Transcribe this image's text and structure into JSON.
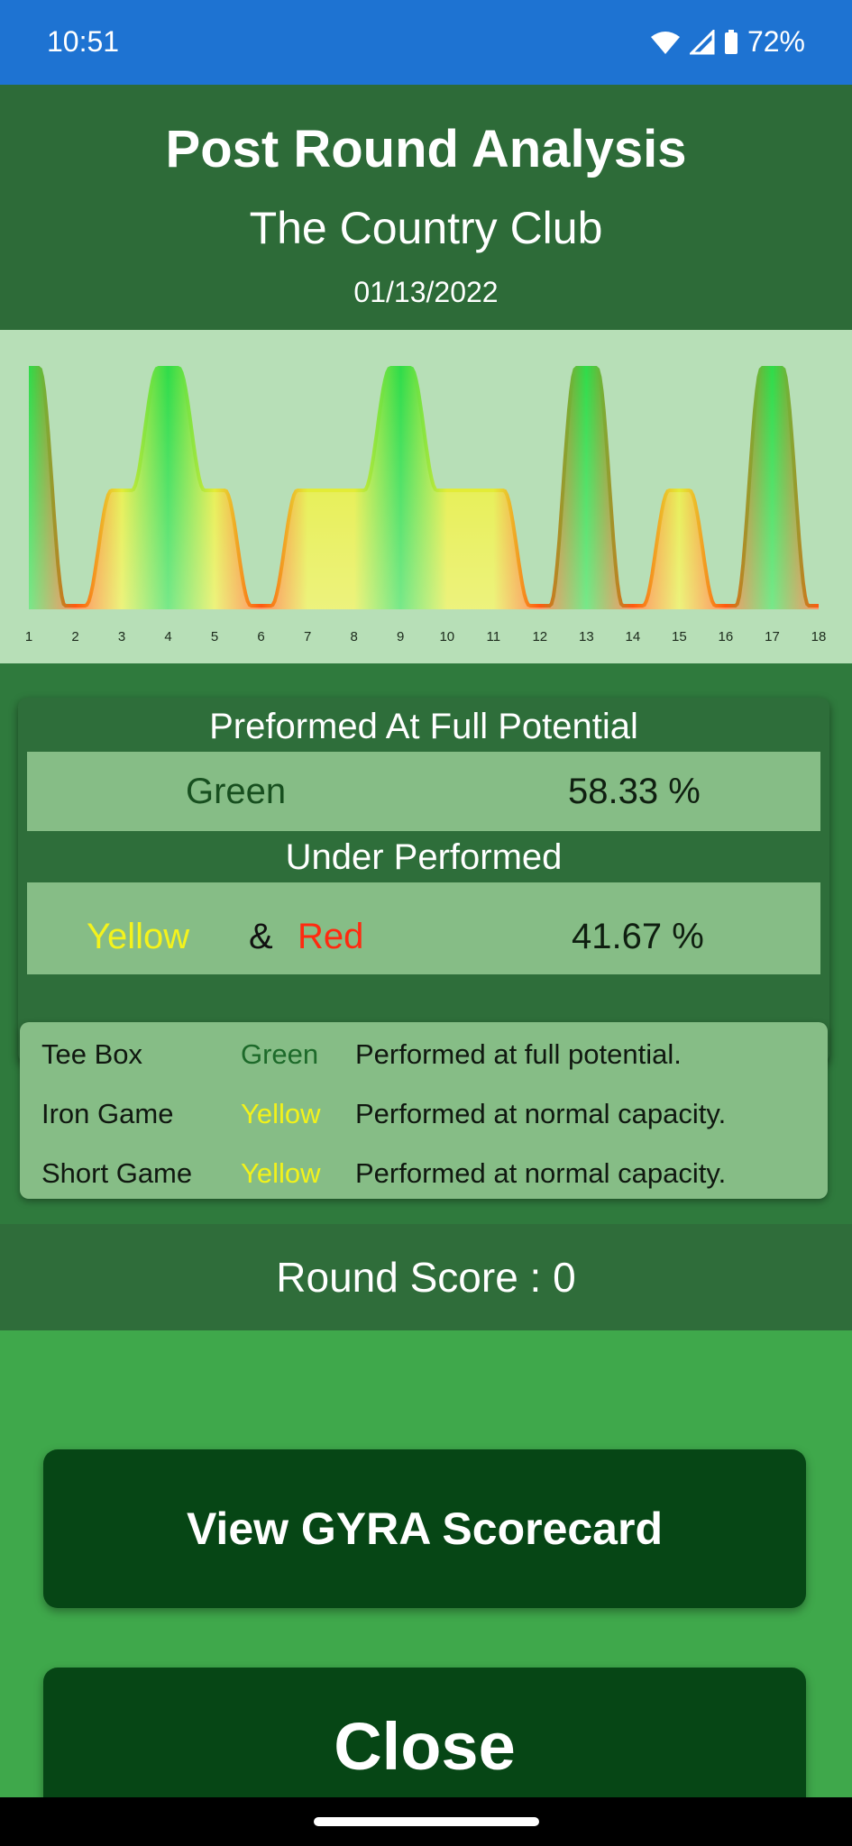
{
  "status": {
    "time": "10:51",
    "battery": "72%"
  },
  "header": {
    "title": "Post Round Analysis",
    "course": "The Country Club",
    "date": "01/13/2022"
  },
  "chart_data": {
    "type": "area",
    "x": [
      1,
      2,
      3,
      4,
      5,
      6,
      7,
      8,
      9,
      10,
      11,
      12,
      13,
      14,
      15,
      16,
      17,
      18
    ],
    "categories": [
      "1",
      "2",
      "3",
      "4",
      "5",
      "6",
      "7",
      "8",
      "9",
      "10",
      "11",
      "12",
      "13",
      "14",
      "15",
      "16",
      "17",
      "18"
    ],
    "levels": [
      "green",
      "red",
      "yellow",
      "green",
      "yellow",
      "red",
      "yellow",
      "yellow",
      "green",
      "yellow",
      "yellow",
      "red",
      "green",
      "red",
      "yellow",
      "red",
      "green",
      "red"
    ],
    "values": [
      3,
      1,
      2,
      3,
      2,
      1,
      2,
      2,
      3,
      2,
      2,
      1,
      3,
      1,
      2,
      1,
      3,
      1
    ],
    "colors": {
      "green": "#2fdc4a",
      "yellow": "#e3ec37",
      "red": "#ff5a10"
    },
    "title": "",
    "xlabel": "",
    "ylabel": ""
  },
  "performance": {
    "full_heading": "Preformed At Full Potential",
    "green_label": "Green",
    "green_pct": "58.33 %",
    "under_heading": "Under Performed",
    "yellow_label": "Yellow",
    "amp": "&",
    "red_label": "Red",
    "under_pct": "41.67 %"
  },
  "details": [
    {
      "area": "Tee Box",
      "rating": "Green",
      "note": "Performed at full potential.",
      "color": "#1d6a2a"
    },
    {
      "area": "Iron Game",
      "rating": "Yellow",
      "note": "Performed at normal capacity.",
      "color": "#f2f21a"
    },
    {
      "area": "Short Game",
      "rating": "Yellow",
      "note": "Performed at normal capacity.",
      "color": "#f2f21a"
    }
  ],
  "score": {
    "text": "Round Score : 0"
  },
  "buttons": {
    "scorecard": "View GYRA Scorecard",
    "close": "Close"
  }
}
